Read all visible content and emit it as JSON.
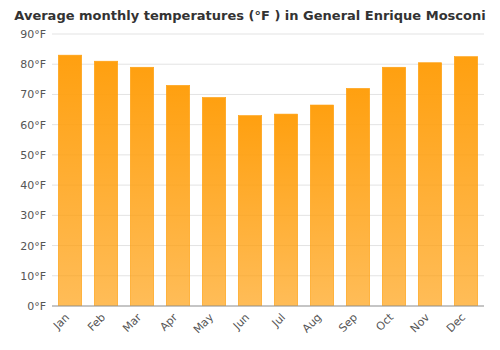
{
  "chart_data": {
    "type": "bar",
    "title": "Average monthly temperatures (°F ) in General Enrique Mosconi",
    "categories": [
      "Jan",
      "Feb",
      "Mar",
      "Apr",
      "May",
      "Jun",
      "Jul",
      "Aug",
      "Sep",
      "Oct",
      "Nov",
      "Dec"
    ],
    "values": [
      83,
      81,
      79,
      73,
      69,
      63,
      63.5,
      66.5,
      72,
      79,
      80.5,
      82.5
    ],
    "color": "#FFA010",
    "ylim": [
      0,
      90
    ],
    "yticks": [
      {
        "value": 0,
        "label": "0°F"
      },
      {
        "value": 10,
        "label": "10°F"
      },
      {
        "value": 20,
        "label": "20°F"
      },
      {
        "value": 30,
        "label": "30°F"
      },
      {
        "value": 40,
        "label": "40°F"
      },
      {
        "value": 50,
        "label": "50°F"
      },
      {
        "value": 60,
        "label": "60°F"
      },
      {
        "value": 70,
        "label": "70°F"
      },
      {
        "value": 80,
        "label": "80°F"
      },
      {
        "value": 90,
        "label": "90°F"
      }
    ],
    "grid": true
  }
}
